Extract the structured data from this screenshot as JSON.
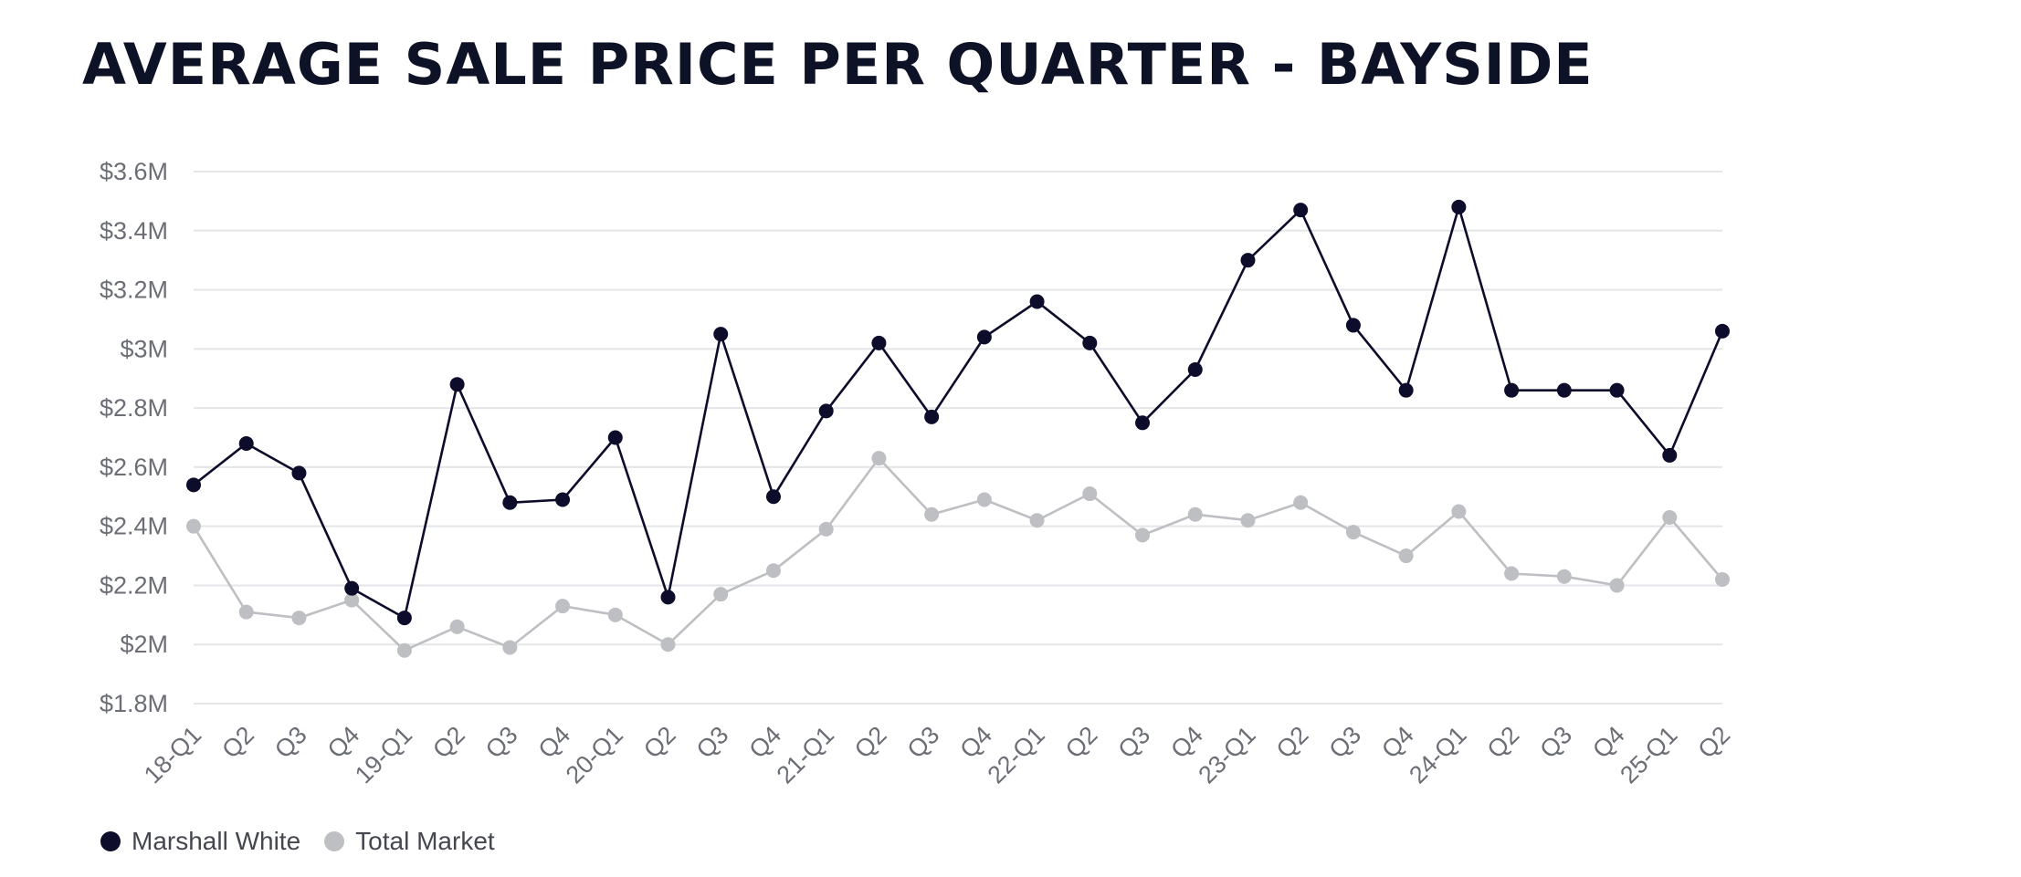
{
  "chart_data": {
    "type": "line",
    "title": "AVERAGE SALE PRICE PER QUARTER - BAYSIDE",
    "xlabel": "",
    "ylabel": "",
    "categories": [
      "18-Q1",
      "Q2",
      "Q3",
      "Q4",
      "19-Q1",
      "Q2",
      "Q3",
      "Q4",
      "20-Q1",
      "Q2",
      "Q3",
      "Q4",
      "21-Q1",
      "Q2",
      "Q3",
      "Q4",
      "22-Q1",
      "Q2",
      "Q3",
      "Q4",
      "23-Q1",
      "Q2",
      "Q3",
      "Q4",
      "24-Q1",
      "Q2",
      "Q3",
      "Q4",
      "25-Q1",
      "Q2"
    ],
    "ylim": [
      1.8,
      3.6
    ],
    "yticks": [
      1.8,
      2.0,
      2.2,
      2.4,
      2.6,
      2.8,
      3.0,
      3.2,
      3.4,
      3.6
    ],
    "ytick_labels": [
      "$1.8M",
      "$2M",
      "$2.2M",
      "$2.4M",
      "$2.6M",
      "$2.8M",
      "$3M",
      "$3.2M",
      "$3.4M",
      "$3.6M"
    ],
    "grid": true,
    "legend_position": "bottom-left",
    "series": [
      {
        "name": "Marshall White",
        "color": "#0d0d2b",
        "values": [
          2.54,
          2.68,
          2.58,
          2.19,
          2.09,
          2.88,
          2.48,
          2.49,
          2.7,
          2.16,
          3.05,
          2.5,
          2.79,
          3.02,
          2.77,
          3.04,
          3.16,
          3.02,
          2.75,
          2.93,
          3.3,
          3.47,
          3.08,
          2.86,
          3.48,
          2.86,
          2.86,
          2.86,
          2.64,
          3.06
        ]
      },
      {
        "name": "Total Market",
        "color": "#bdbfc3",
        "values": [
          2.4,
          2.11,
          2.09,
          2.15,
          1.98,
          2.06,
          1.99,
          2.13,
          2.1,
          2.0,
          2.17,
          2.25,
          2.39,
          2.63,
          2.44,
          2.49,
          2.42,
          2.51,
          2.37,
          2.44,
          2.42,
          2.48,
          2.38,
          2.3,
          2.45,
          2.24,
          2.23,
          2.2,
          2.43,
          2.22
        ]
      }
    ]
  }
}
